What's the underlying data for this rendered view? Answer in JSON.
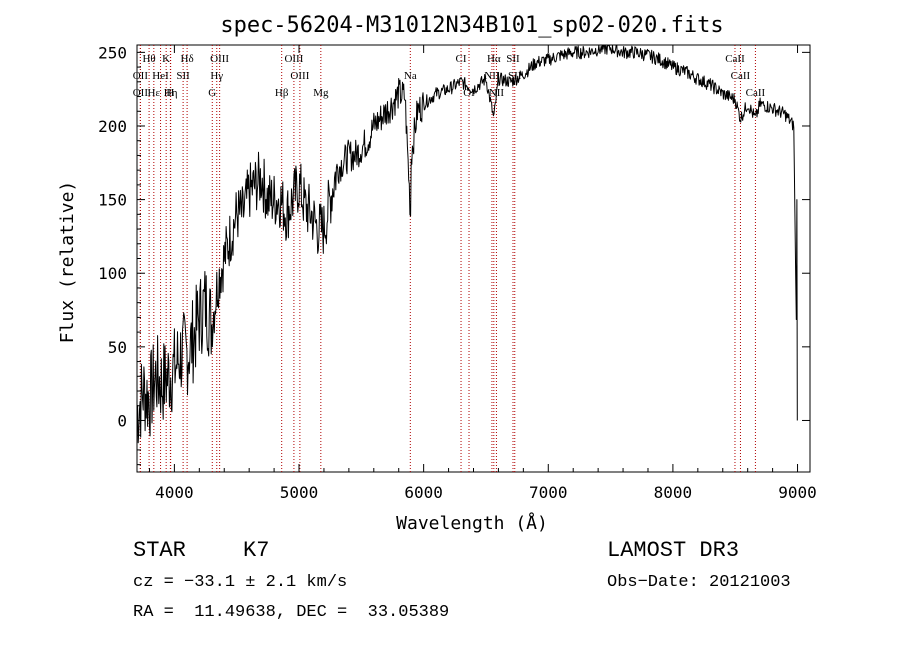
{
  "chart_data": {
    "type": "line",
    "title": "spec-56204-M31012N34B101_sp02-020.fits",
    "xlabel": "Wavelength (Å)",
    "ylabel": "Flux (relative)",
    "xlim": [
      3700,
      9100
    ],
    "ylim": [
      -35,
      255
    ],
    "xticks": [
      4000,
      5000,
      6000,
      7000,
      8000,
      9000
    ],
    "yticks": [
      0,
      50,
      100,
      150,
      200,
      250
    ],
    "series": [
      {
        "name": "spectrum",
        "x": [
          3700,
          3750,
          3800,
          3850,
          3900,
          3950,
          4000,
          4050,
          4100,
          4150,
          4200,
          4250,
          4300,
          4350,
          4400,
          4450,
          4500,
          4550,
          4600,
          4650,
          4700,
          4750,
          4800,
          4850,
          4900,
          4950,
          5000,
          5050,
          5100,
          5150,
          5200,
          5250,
          5300,
          5350,
          5400,
          5450,
          5500,
          5550,
          5600,
          5650,
          5700,
          5750,
          5800,
          5850,
          5895,
          5900,
          5950,
          6000,
          6100,
          6200,
          6300,
          6400,
          6500,
          6563,
          6600,
          6700,
          6800,
          6900,
          7000,
          7100,
          7200,
          7300,
          7400,
          7500,
          7600,
          7700,
          7800,
          7900,
          8000,
          8100,
          8200,
          8300,
          8400,
          8500,
          8542,
          8600,
          8662,
          8700,
          8800,
          8900,
          8970,
          9000
        ],
        "y": [
          5,
          20,
          15,
          30,
          25,
          30,
          35,
          45,
          45,
          55,
          70,
          80,
          65,
          95,
          110,
          125,
          140,
          140,
          155,
          160,
          165,
          150,
          150,
          150,
          140,
          150,
          160,
          145,
          140,
          130,
          130,
          150,
          170,
          175,
          180,
          180,
          185,
          190,
          200,
          205,
          210,
          215,
          222,
          220,
          140,
          180,
          210,
          215,
          222,
          225,
          230,
          225,
          232,
          205,
          232,
          230,
          235,
          243,
          245,
          248,
          250,
          250,
          252,
          253,
          250,
          250,
          248,
          245,
          240,
          237,
          232,
          228,
          222,
          218,
          205,
          215,
          205,
          215,
          212,
          208,
          200,
          0
        ]
      }
    ],
    "lines": [
      {
        "label": "Hθ",
        "x": 3797,
        "row": 0
      },
      {
        "label": "K",
        "x": 3934,
        "row": 0
      },
      {
        "label": "Hδ",
        "x": 4102,
        "row": 0
      },
      {
        "label": "OIII",
        "x": 4363,
        "row": 0
      },
      {
        "label": "OIII",
        "x": 4959,
        "row": 0
      },
      {
        "label": "CI",
        "x": 6300,
        "row": 0
      },
      {
        "label": "Hα",
        "x": 6563,
        "row": 0
      },
      {
        "label": "SII",
        "x": 6717,
        "row": 0
      },
      {
        "label": "CaII",
        "x": 8498,
        "row": 0
      },
      {
        "label": "OII",
        "x": 3727,
        "row": 1
      },
      {
        "label": "HeI",
        "x": 3889,
        "row": 1
      },
      {
        "label": "SII",
        "x": 4070,
        "row": 1
      },
      {
        "label": "Hγ",
        "x": 4340,
        "row": 1
      },
      {
        "label": "OIII",
        "x": 5007,
        "row": 1
      },
      {
        "label": "Na",
        "x": 5893,
        "row": 1
      },
      {
        "label": "NII",
        "x": 6548,
        "row": 1
      },
      {
        "label": "SII",
        "x": 6731,
        "row": 1
      },
      {
        "label": "CaII",
        "x": 8542,
        "row": 1
      },
      {
        "label": "OII",
        "x": 3727,
        "row": 2
      },
      {
        "label": "Hε",
        "x": 3835,
        "row": 2
      },
      {
        "label": "Hη",
        "x": 3970,
        "row": 2
      },
      {
        "label": "H",
        "x": 3968,
        "row": 2
      },
      {
        "label": "G",
        "x": 4304,
        "row": 2
      },
      {
        "label": "Hβ",
        "x": 4861,
        "row": 2
      },
      {
        "label": "Mg",
        "x": 5175,
        "row": 2
      },
      {
        "label": "OI",
        "x": 6364,
        "row": 2
      },
      {
        "label": "NII",
        "x": 6584,
        "row": 2
      },
      {
        "label": "CaII",
        "x": 8662,
        "row": 2
      }
    ]
  },
  "info": {
    "class": "STAR",
    "subclass": "K7",
    "survey": "LAMOST DR3",
    "cz": "cz = −33.1 ± 2.1 km/s",
    "obs_date": "Obs−Date: 20121003",
    "coords": "RA =  11.49638, DEC =  33.05389"
  }
}
